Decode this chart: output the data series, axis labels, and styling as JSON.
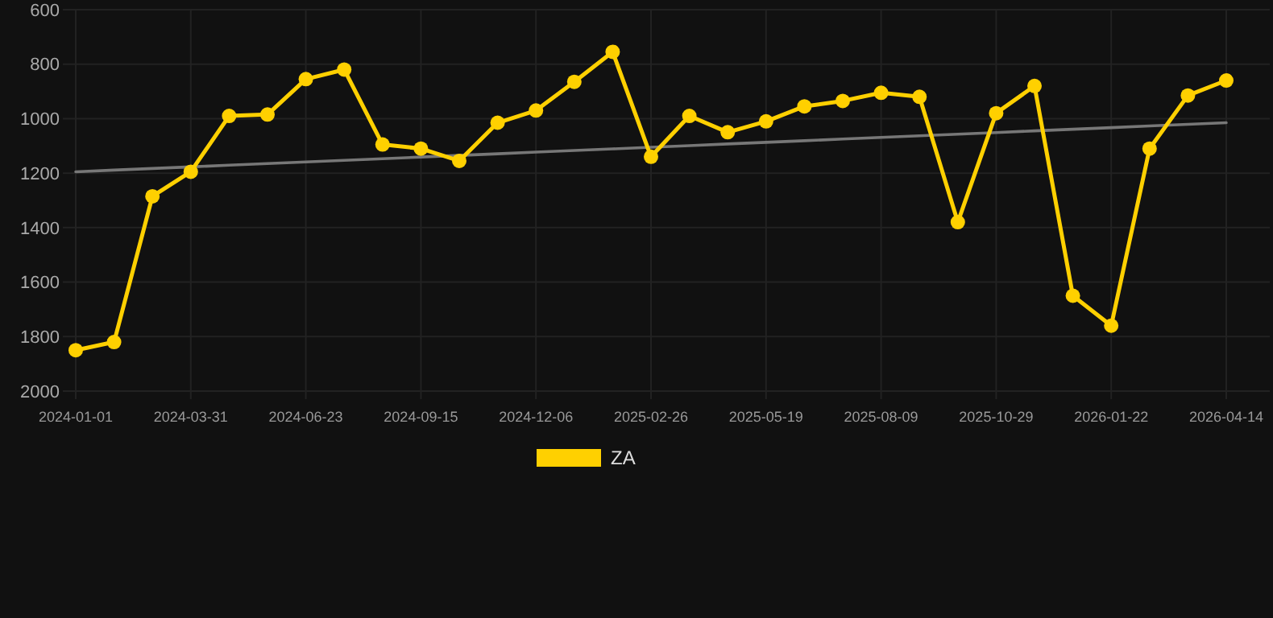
{
  "chart_data": {
    "type": "line",
    "categories": [
      "2024-01-01",
      null,
      null,
      "2024-03-31",
      null,
      null,
      "2024-06-23",
      null,
      null,
      "2024-09-15",
      null,
      null,
      "2024-12-06",
      null,
      null,
      "2025-02-26",
      null,
      null,
      "2025-05-19",
      null,
      null,
      "2025-08-09",
      null,
      null,
      "2025-10-29",
      null,
      null,
      "2026-01-22",
      null,
      null,
      "2026-04-14"
    ],
    "series": [
      {
        "name": "ZA",
        "color": "#ffd000",
        "marker": "circle",
        "values": [
          1850,
          1820,
          1285,
          1195,
          990,
          985,
          855,
          820,
          1095,
          1110,
          1155,
          1015,
          970,
          865,
          755,
          1140,
          990,
          1050,
          1010,
          955,
          935,
          905,
          920,
          1380,
          980,
          880,
          1650,
          1760,
          1110,
          915,
          860
        ]
      },
      {
        "type": "line",
        "color": "#777777",
        "marker": "none",
        "values": [
          1195,
          1189,
          1183,
          1177,
          1171,
          1165,
          1159,
          1153,
          1147,
          1141,
          1135,
          1129,
          1123,
          1117,
          1111,
          1105,
          1099,
          1093,
          1087,
          1081,
          1075,
          1069,
          1063,
          1057,
          1051,
          1045,
          1039,
          1033,
          1027,
          1021,
          1015
        ]
      }
    ],
    "ylim": [
      2000,
      600
    ],
    "yticks": [
      600,
      800,
      1000,
      1200,
      1400,
      1600,
      1800,
      2000
    ],
    "grid": true,
    "legend": "bottom"
  }
}
